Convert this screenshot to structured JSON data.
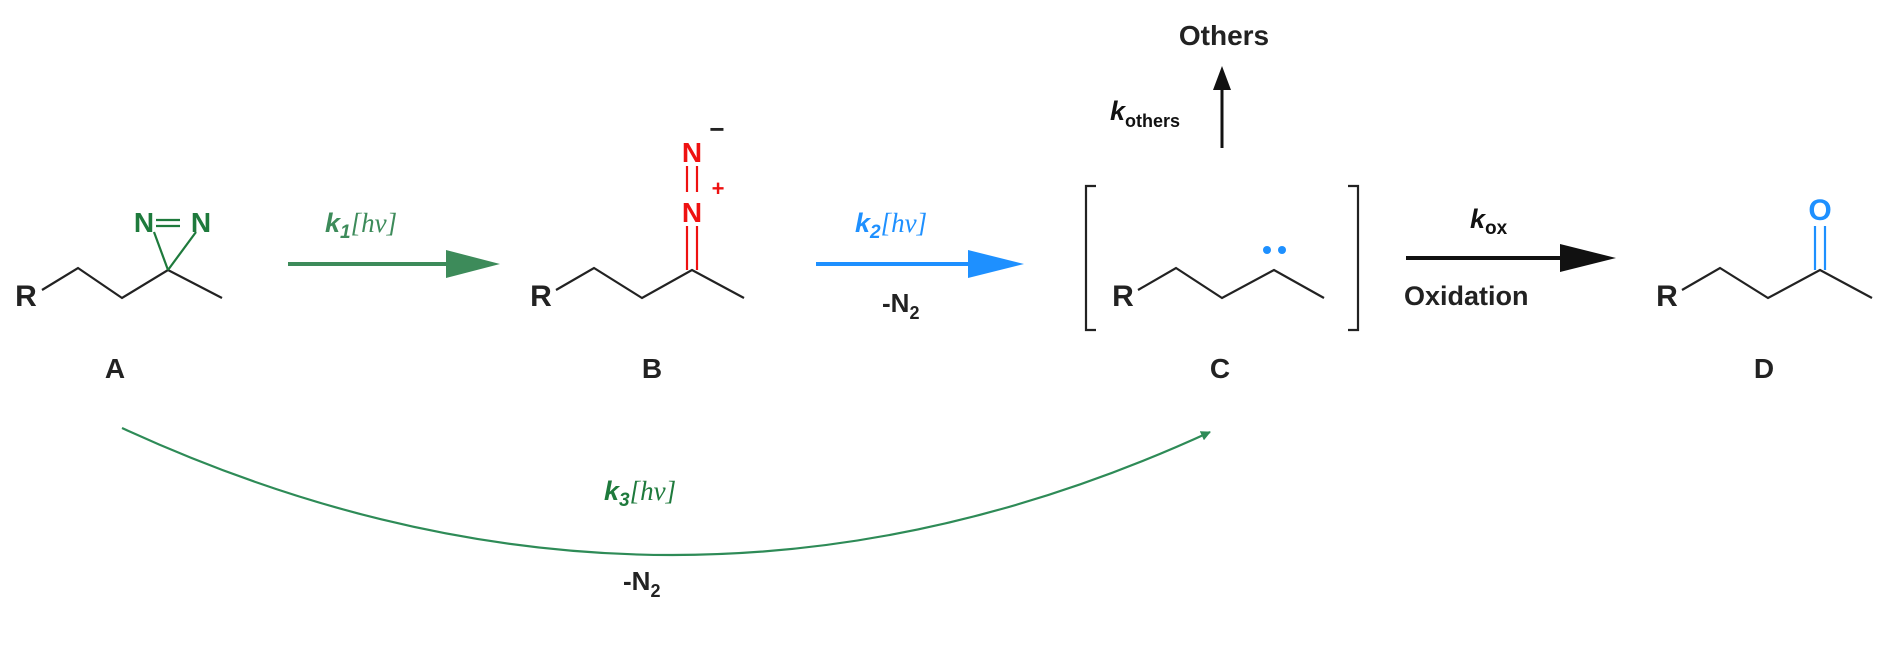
{
  "colors": {
    "green": "#2e8b57",
    "dark_green": "#1e7a3c",
    "red": "#ee1111",
    "blue": "#1e90ff",
    "black": "#111111"
  },
  "compounds": {
    "A": {
      "label": "A",
      "r": "R",
      "n1": "N",
      "n2": "N"
    },
    "B": {
      "label": "B",
      "r": "R",
      "n_top": "N",
      "n_bot": "N",
      "minus": "−",
      "plus": "+"
    },
    "C": {
      "label": "C",
      "r": "R"
    },
    "D": {
      "label": "D",
      "r": "R",
      "o": "O"
    }
  },
  "others": {
    "label": "Others",
    "k": "k",
    "k_sub": "others"
  },
  "arrows": {
    "k1": {
      "k": "k",
      "sub": "1",
      "hv": "[hν]"
    },
    "k2": {
      "k": "k",
      "sub": "2",
      "hv": "[hν]",
      "below": "-N",
      "below_sub": "2"
    },
    "kox": {
      "k": "k",
      "sub": "ox",
      "below": "Oxidation"
    },
    "k3": {
      "k": "k",
      "sub": "3",
      "hv": "[hν]",
      "below": "-N",
      "below_sub": "2"
    }
  }
}
